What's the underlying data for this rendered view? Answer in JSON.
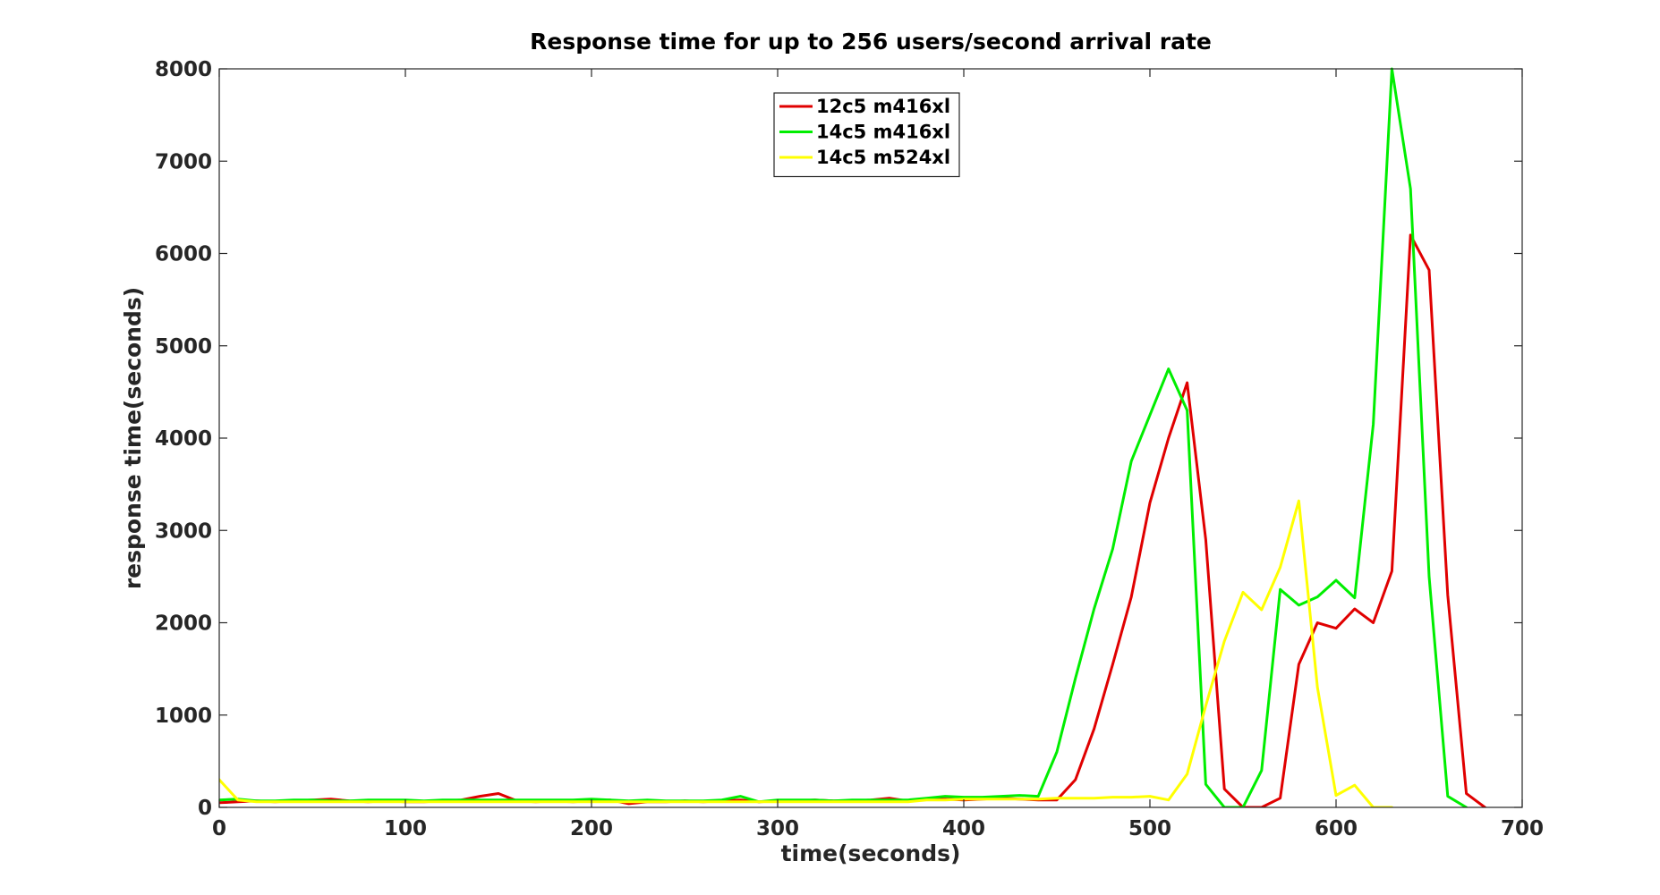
{
  "chart_data": {
    "type": "line",
    "title": "Response time for up to 256 users/second arrival rate",
    "xlabel": "time(seconds)",
    "ylabel": "response time(seconds)",
    "xlim": [
      0,
      700
    ],
    "ylim": [
      0,
      8000
    ],
    "xticks": [
      0,
      100,
      200,
      300,
      400,
      500,
      600,
      700
    ],
    "yticks": [
      0,
      1000,
      2000,
      3000,
      4000,
      5000,
      6000,
      7000,
      8000
    ],
    "grid": false,
    "legend_position": "top-center",
    "series": [
      {
        "name": "12c5 m416xl",
        "color": "#e00000",
        "x": [
          0,
          10,
          20,
          30,
          40,
          50,
          60,
          70,
          80,
          90,
          100,
          110,
          120,
          130,
          140,
          150,
          160,
          170,
          180,
          190,
          200,
          210,
          220,
          230,
          240,
          250,
          260,
          270,
          280,
          290,
          300,
          310,
          320,
          330,
          340,
          350,
          360,
          370,
          380,
          390,
          400,
          410,
          420,
          430,
          440,
          450,
          460,
          470,
          480,
          490,
          500,
          510,
          520,
          530,
          540,
          550,
          560,
          570,
          580,
          590,
          600,
          610,
          620,
          630,
          640,
          650,
          660,
          670,
          680
        ],
        "y": [
          50,
          60,
          70,
          60,
          70,
          80,
          90,
          70,
          60,
          70,
          60,
          60,
          70,
          80,
          120,
          150,
          70,
          60,
          70,
          60,
          70,
          80,
          40,
          60,
          60,
          70,
          60,
          70,
          80,
          60,
          70,
          70,
          80,
          70,
          70,
          80,
          100,
          70,
          90,
          90,
          80,
          90,
          100,
          90,
          80,
          80,
          300,
          850,
          1550,
          2280,
          3300,
          4000,
          4600,
          2900,
          200,
          0,
          0,
          100,
          1550,
          2000,
          1940,
          2150,
          2000,
          2560,
          6200,
          5820,
          2300,
          150,
          0
        ]
      },
      {
        "name": "14c5 m416xl",
        "color": "#00ee00",
        "x": [
          0,
          10,
          20,
          30,
          40,
          50,
          60,
          70,
          80,
          90,
          100,
          110,
          120,
          130,
          140,
          150,
          160,
          170,
          180,
          190,
          200,
          210,
          220,
          230,
          240,
          250,
          260,
          270,
          280,
          290,
          300,
          310,
          320,
          330,
          340,
          350,
          360,
          370,
          380,
          390,
          400,
          410,
          420,
          430,
          440,
          450,
          460,
          470,
          480,
          490,
          500,
          510,
          520,
          530,
          540,
          550,
          560,
          570,
          580,
          590,
          600,
          610,
          620,
          630,
          640,
          650,
          660,
          670
        ],
        "y": [
          80,
          90,
          70,
          70,
          80,
          80,
          70,
          70,
          80,
          80,
          80,
          70,
          80,
          80,
          80,
          80,
          80,
          80,
          80,
          80,
          90,
          80,
          70,
          80,
          70,
          70,
          70,
          80,
          120,
          60,
          80,
          80,
          80,
          70,
          80,
          80,
          80,
          80,
          100,
          120,
          110,
          110,
          120,
          130,
          120,
          600,
          1400,
          2150,
          2800,
          3750,
          4250,
          4750,
          4300,
          250,
          0,
          0,
          400,
          2360,
          2190,
          2280,
          2460,
          2270,
          4150,
          8000,
          6700,
          2500,
          120,
          0
        ]
      },
      {
        "name": "14c5 m524xl",
        "color": "#ffff00",
        "x": [
          0,
          10,
          20,
          30,
          40,
          50,
          60,
          70,
          80,
          90,
          100,
          110,
          120,
          130,
          140,
          150,
          160,
          170,
          180,
          190,
          200,
          210,
          220,
          230,
          240,
          250,
          260,
          270,
          280,
          290,
          300,
          310,
          320,
          330,
          340,
          350,
          360,
          370,
          380,
          390,
          400,
          410,
          420,
          430,
          440,
          450,
          460,
          470,
          480,
          490,
          500,
          510,
          520,
          530,
          540,
          550,
          560,
          570,
          580,
          590,
          600,
          610,
          620,
          630
        ],
        "y": [
          300,
          80,
          60,
          60,
          60,
          60,
          60,
          60,
          60,
          60,
          60,
          60,
          60,
          60,
          60,
          60,
          60,
          60,
          60,
          60,
          60,
          60,
          60,
          60,
          60,
          60,
          60,
          60,
          60,
          60,
          60,
          60,
          60,
          60,
          60,
          60,
          60,
          60,
          80,
          80,
          90,
          90,
          90,
          90,
          90,
          100,
          100,
          100,
          110,
          110,
          120,
          80,
          360,
          1100,
          1800,
          2330,
          2140,
          2600,
          3320,
          1300,
          130,
          240,
          0,
          0
        ]
      }
    ]
  }
}
